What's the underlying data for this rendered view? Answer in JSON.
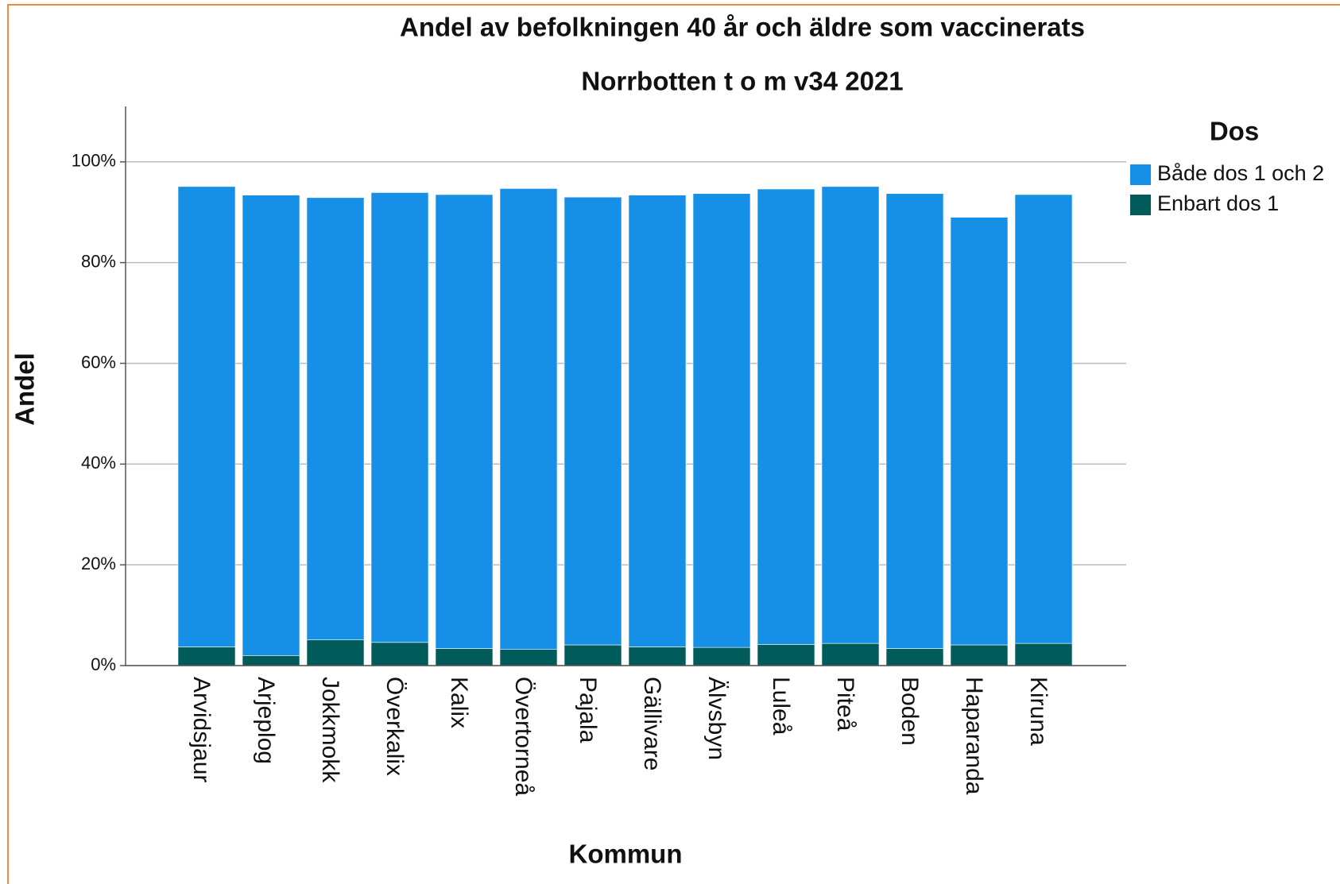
{
  "chart_data": {
    "type": "stacked_bar",
    "title": "Andel av befolkningen 40 år och äldre som vaccinerats",
    "subtitle": "Norrbotten t o m v34 2021",
    "x_label": "Kommun",
    "y_label": "Andel",
    "legend_title": "Dos",
    "categories": [
      "Arvidsjaur",
      "Arjeplog",
      "Jokkmokk",
      "Överkalix",
      "Kalix",
      "Övertorneå",
      "Pajala",
      "Gällivare",
      "Älvsbyn",
      "Luleå",
      "Piteå",
      "Boden",
      "Haparanda",
      "Kiruna"
    ],
    "series": [
      {
        "name": "Både dos 1 och 2",
        "color": "#1590e6",
        "values": [
          91.4,
          91.4,
          87.8,
          89.3,
          90.1,
          91.5,
          88.9,
          89.7,
          90.1,
          90.4,
          90.7,
          90.3,
          84.9,
          89.1
        ]
      },
      {
        "name": "Enbart dos 1",
        "color": "#005b5a",
        "values": [
          3.7,
          2.0,
          5.1,
          4.6,
          3.4,
          3.2,
          4.1,
          3.7,
          3.6,
          4.2,
          4.4,
          3.4,
          4.1,
          4.4
        ]
      }
    ],
    "ylim": [
      0,
      111
    ],
    "yticks": [
      {
        "value": 0,
        "label": "0%"
      },
      {
        "value": 20,
        "label": "20%"
      },
      {
        "value": 40,
        "label": "40%"
      },
      {
        "value": 60,
        "label": "60%"
      },
      {
        "value": 80,
        "label": "80%"
      },
      {
        "value": 100,
        "label": "100%"
      }
    ],
    "grid": true,
    "legend": "right"
  }
}
